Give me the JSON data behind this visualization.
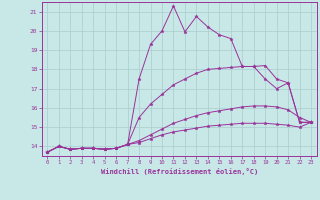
{
  "background_color": "#c8e8e8",
  "grid_color": "#aacccc",
  "line_color": "#993399",
  "marker": "*",
  "xlabel": "Windchill (Refroidissement éolien,°C)",
  "xlim": [
    -0.5,
    23.5
  ],
  "ylim": [
    13.5,
    21.5
  ],
  "yticks": [
    14,
    15,
    16,
    17,
    18,
    19,
    20,
    21
  ],
  "xticks": [
    0,
    1,
    2,
    3,
    4,
    5,
    6,
    7,
    8,
    9,
    10,
    11,
    12,
    13,
    14,
    15,
    16,
    17,
    18,
    19,
    20,
    21,
    22,
    23
  ],
  "series": [
    {
      "x": [
        0,
        1,
        2,
        3,
        4,
        5,
        6,
        7,
        8,
        9,
        10,
        11,
        12,
        13,
        14,
        15,
        16,
        17,
        18,
        19,
        20,
        21,
        22,
        23
      ],
      "y": [
        13.7,
        14.0,
        13.85,
        13.9,
        13.9,
        13.85,
        13.9,
        14.1,
        17.5,
        19.3,
        20.0,
        21.3,
        19.95,
        20.75,
        20.2,
        19.8,
        19.6,
        18.15,
        18.15,
        18.2,
        17.5,
        17.3,
        15.25,
        15.25
      ]
    },
    {
      "x": [
        0,
        1,
        2,
        3,
        4,
        5,
        6,
        7,
        8,
        9,
        10,
        11,
        12,
        13,
        14,
        15,
        16,
        17,
        18,
        19,
        20,
        21,
        22,
        23
      ],
      "y": [
        13.7,
        14.0,
        13.85,
        13.9,
        13.9,
        13.85,
        13.9,
        14.1,
        15.5,
        16.2,
        16.7,
        17.2,
        17.5,
        17.8,
        18.0,
        18.05,
        18.1,
        18.15,
        18.15,
        17.5,
        17.0,
        17.3,
        15.25,
        15.25
      ]
    },
    {
      "x": [
        0,
        1,
        2,
        3,
        4,
        5,
        6,
        7,
        8,
        9,
        10,
        11,
        12,
        13,
        14,
        15,
        16,
        17,
        18,
        19,
        20,
        21,
        22,
        23
      ],
      "y": [
        13.7,
        14.0,
        13.85,
        13.9,
        13.9,
        13.85,
        13.9,
        14.1,
        14.3,
        14.6,
        14.9,
        15.2,
        15.4,
        15.6,
        15.75,
        15.85,
        15.95,
        16.05,
        16.1,
        16.1,
        16.05,
        15.9,
        15.5,
        15.25
      ]
    },
    {
      "x": [
        0,
        1,
        2,
        3,
        4,
        5,
        6,
        7,
        8,
        9,
        10,
        11,
        12,
        13,
        14,
        15,
        16,
        17,
        18,
        19,
        20,
        21,
        22,
        23
      ],
      "y": [
        13.7,
        14.0,
        13.85,
        13.9,
        13.9,
        13.85,
        13.9,
        14.1,
        14.2,
        14.4,
        14.6,
        14.75,
        14.85,
        14.95,
        15.05,
        15.1,
        15.15,
        15.2,
        15.2,
        15.2,
        15.15,
        15.1,
        15.0,
        15.25
      ]
    }
  ]
}
